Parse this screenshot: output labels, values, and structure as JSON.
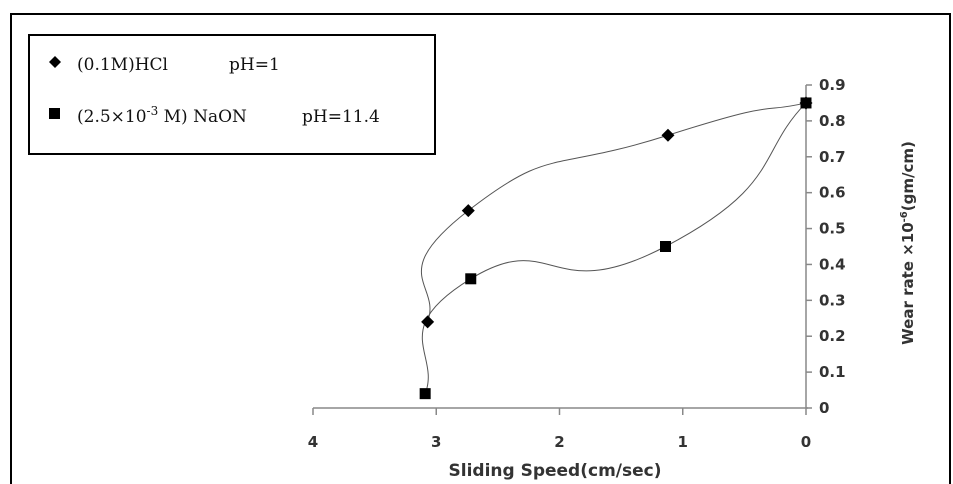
{
  "chart_data": {
    "type": "line",
    "x_axis": {
      "label": "Sliding Speed(cm/sec)",
      "range": [
        0,
        4
      ],
      "reversed": true,
      "ticks": [
        "4",
        "3",
        "2",
        "1",
        "0"
      ]
    },
    "y_axis": {
      "label_main": "Wear rate ×10",
      "label_sup": "-6",
      "label_tail": "(gm/cm)",
      "position": "right",
      "range": [
        0,
        0.9
      ],
      "ticks": [
        "0",
        "0.1",
        "0.2",
        "0.3",
        "0.4",
        "0.5",
        "0.6",
        "0.7",
        "0.8",
        "0.9"
      ]
    },
    "grid": false,
    "legend_placement": "top-left",
    "series": [
      {
        "marker": "diamond",
        "legend": {
          "solution": "(0.1M)HCl",
          "ph": "pH=1"
        },
        "x": [
          3.07,
          2.74,
          1.12,
          0
        ],
        "y": [
          0.24,
          0.55,
          0.76,
          0.85
        ],
        "color": "#000000"
      },
      {
        "marker": "square",
        "legend": {
          "solution_pre": "(2.5×10",
          "solution_sup": "-3",
          "solution_post": " M) NaON",
          "ph": "pH=11.4"
        },
        "x": [
          3.09,
          2.72,
          1.14,
          0
        ],
        "y": [
          0.04,
          0.36,
          0.45,
          0.85
        ],
        "color": "#000000"
      }
    ]
  }
}
